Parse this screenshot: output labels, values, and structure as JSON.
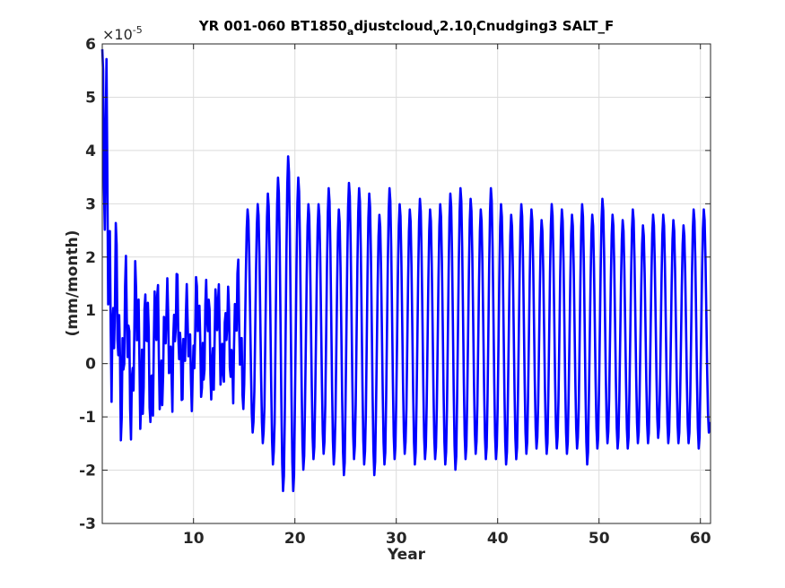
{
  "chart_data": {
    "type": "line",
    "title_parts": [
      {
        "text": "YR 001-060 BT1850",
        "sub": false
      },
      {
        "text": "a",
        "sub": true
      },
      {
        "text": "djustcloud",
        "sub": false
      },
      {
        "text": "v",
        "sub": true
      },
      {
        "text": "2.10",
        "sub": false
      },
      {
        "text": "l",
        "sub": true
      },
      {
        "text": "Cnudging3 SALT_F",
        "sub": false
      }
    ],
    "xlabel": "Year",
    "ylabel": "(mm/month)",
    "y_exponent": {
      "base": "×10",
      "power": "-5"
    },
    "xlim": [
      1,
      61
    ],
    "ylim": [
      -3,
      6
    ],
    "xticks": [
      10,
      20,
      30,
      40,
      50,
      60
    ],
    "xtick_labels": [
      "10",
      "20",
      "30",
      "40",
      "50",
      "60"
    ],
    "yticks": [
      -3,
      -2,
      -1,
      0,
      1,
      2,
      3,
      4,
      5,
      6
    ],
    "ytick_labels": [
      "-3",
      "-2",
      "-1",
      "0",
      "1",
      "2",
      "3",
      "4",
      "5",
      "6"
    ],
    "grid": true,
    "color": "#0000ff",
    "series": [
      {
        "values_per_year": "monthly",
        "yearly_max": [
          5.9,
          2.8,
          2.1,
          2.1,
          1.7,
          1.9,
          1.7,
          1.9,
          1.5,
          1.8,
          1.8,
          1.8,
          1.6,
          2.1,
          2.9,
          3.0,
          3.2,
          3.5,
          3.9,
          3.5,
          3.0,
          3.0,
          3.3,
          2.9,
          3.4,
          3.3,
          3.2,
          2.8,
          3.3,
          3.0,
          2.9,
          3.1,
          2.9,
          3.0,
          3.2,
          3.3,
          3.1,
          2.9,
          3.3,
          3.0,
          2.8,
          3.0,
          2.9,
          2.7,
          3.0,
          2.9,
          2.8,
          3.0,
          2.8,
          3.1,
          2.8,
          2.7,
          2.9,
          2.6,
          2.8,
          2.8,
          2.7,
          2.6,
          2.9,
          2.9
        ],
        "yearly_min": [
          -0.9,
          -1.6,
          -1.5,
          -1.4,
          -1.5,
          -1.4,
          -1.0,
          -0.9,
          -0.9,
          -0.8,
          -0.9,
          -0.8,
          -0.9,
          -1.0,
          -1.3,
          -1.5,
          -1.9,
          -2.4,
          -2.4,
          -2.0,
          -1.8,
          -1.7,
          -1.9,
          -2.1,
          -1.8,
          -1.9,
          -2.1,
          -1.9,
          -1.8,
          -1.7,
          -1.9,
          -1.8,
          -1.8,
          -1.9,
          -2.0,
          -1.8,
          -1.7,
          -1.8,
          -1.8,
          -1.9,
          -1.8,
          -1.7,
          -1.6,
          -1.7,
          -1.6,
          -1.7,
          -1.6,
          -1.9,
          -1.6,
          -1.5,
          -1.6,
          -1.6,
          -1.5,
          -1.5,
          -1.4,
          -1.5,
          -1.5,
          -1.5,
          -1.6,
          -1.3
        ]
      }
    ]
  }
}
